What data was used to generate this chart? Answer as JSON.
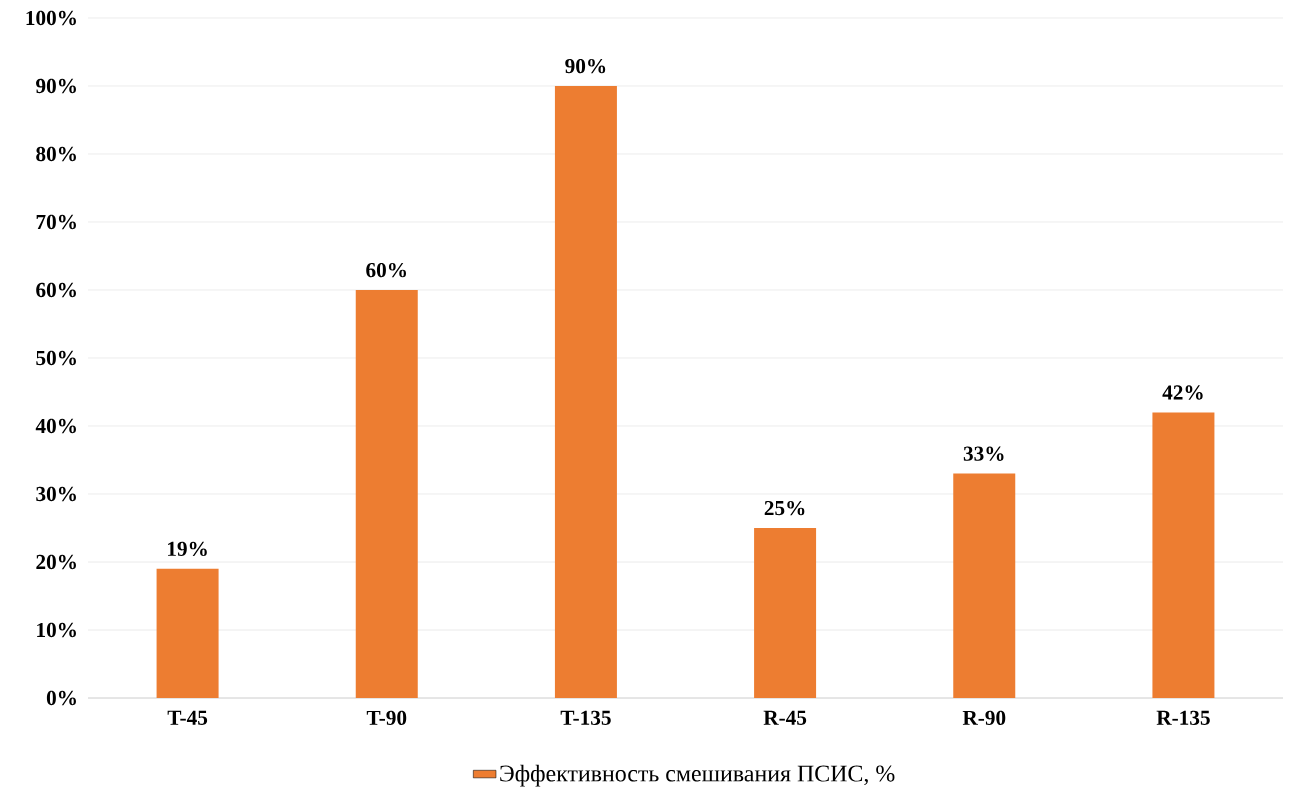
{
  "chart_data": {
    "type": "bar",
    "categories": [
      "T-45",
      "T-90",
      "T-135",
      "R-45",
      "R-90",
      "R-135"
    ],
    "series": [
      {
        "name": "Эффективность смешивания ПСИС, %",
        "color": "#ed7d31",
        "values": [
          19,
          60,
          90,
          25,
          33,
          42
        ],
        "value_labels": [
          "19%",
          "60%",
          "90%",
          "25%",
          "33%",
          "42%"
        ]
      }
    ],
    "ylim": [
      0,
      100
    ],
    "yticks": [
      {
        "value": 0,
        "label": "0%"
      },
      {
        "value": 10,
        "label": "10%"
      },
      {
        "value": 20,
        "label": "20%"
      },
      {
        "value": 30,
        "label": "30%"
      },
      {
        "value": 40,
        "label": "40%"
      },
      {
        "value": 50,
        "label": "50%"
      },
      {
        "value": 60,
        "label": "60%"
      },
      {
        "value": 70,
        "label": "70%"
      },
      {
        "value": 80,
        "label": "80%"
      },
      {
        "value": 90,
        "label": "90%"
      },
      {
        "value": 100,
        "label": "100%"
      }
    ],
    "grid": "y",
    "legend": "bottom"
  }
}
